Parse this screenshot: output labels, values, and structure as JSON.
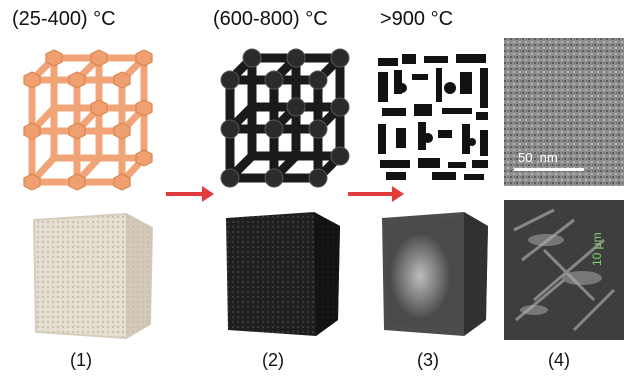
{
  "figure": {
    "temperatures": [
      "(25-400) °C",
      "(600-800) °C",
      ">900 °C"
    ],
    "stages": [
      "(1)",
      "(2)",
      "(3)",
      "(4)"
    ],
    "scalebars": {
      "tem": "50  nm",
      "sem": "10 μm"
    },
    "colors": {
      "lattice_orange": "#f0a070",
      "lattice_black": "#1a1a1a",
      "arrow_red": "#e23b3b",
      "scalebar_green": "#7fcf6f",
      "foam_white": "#e4ddd0",
      "foam_black": "#222222",
      "foam_gray": "#666666"
    }
  }
}
